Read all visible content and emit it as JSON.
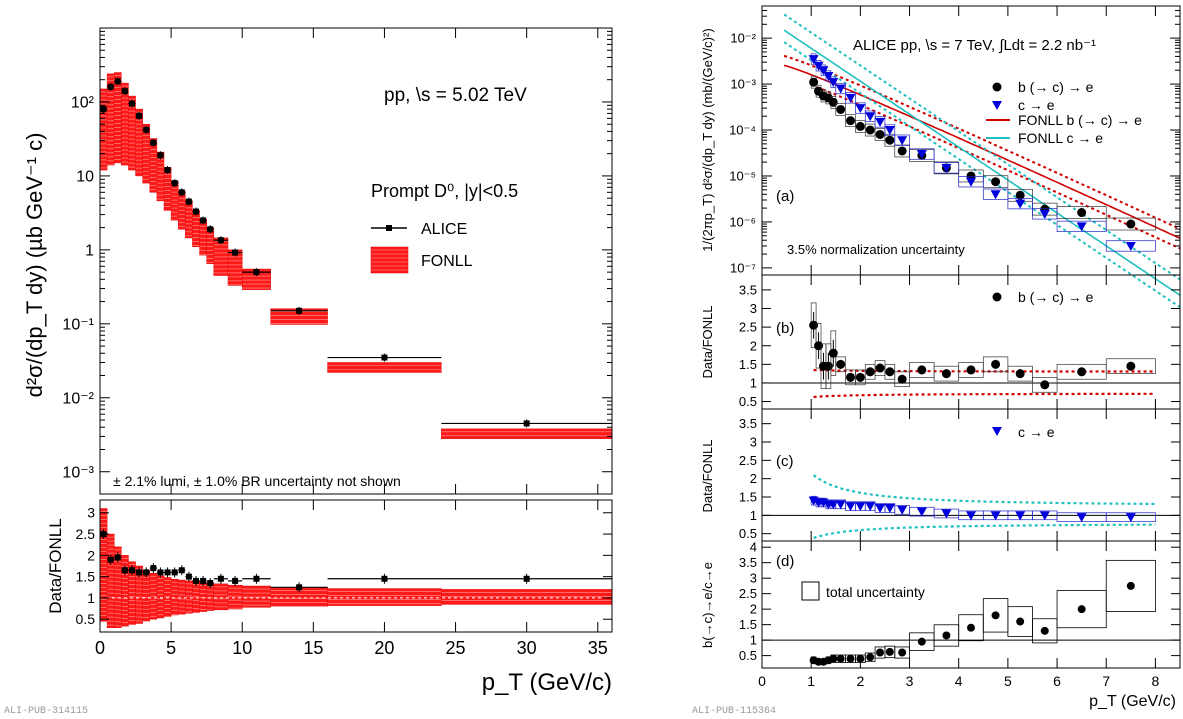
{
  "footers": {
    "left": "ALI-PUB-314115",
    "right": "ALI-PUB-115364"
  },
  "chart_data": [
    {
      "panel": "left-top",
      "type": "scatter",
      "yscale": "log",
      "ylim": [
        0.0005,
        1000
      ],
      "xlim": [
        0,
        36
      ],
      "ylabel": "d²σ/(dp_T dy) (µb GeV⁻¹ c)",
      "ytick_labels": [
        "10⁻³",
        "10⁻²",
        "10⁻¹",
        "1",
        "10",
        "10²"
      ],
      "ytick_values": [
        0.001,
        0.01,
        0.1,
        1,
        10,
        100
      ],
      "annotations": [
        "pp, \\s = 5.02 TeV",
        "Prompt D⁰, |y|<0.5",
        "± 2.1% lumi, ± 1.0% BR uncertainty not shown"
      ],
      "legend": [
        "ALICE",
        "FONLL"
      ],
      "legend_position": "top-right",
      "series": [
        {
          "name": "ALICE",
          "color": "#000000",
          "x": [
            0.25,
            0.75,
            1.25,
            1.75,
            2.25,
            2.75,
            3.25,
            3.75,
            4.25,
            4.75,
            5.25,
            5.75,
            6.25,
            6.75,
            7.25,
            7.75,
            8.5,
            9.5,
            11,
            14,
            20,
            30
          ],
          "xlo": [
            0,
            0.5,
            1,
            1.5,
            2,
            2.5,
            3,
            3.5,
            4,
            4.5,
            5,
            5.5,
            6,
            6.5,
            7,
            7.5,
            8,
            9,
            10,
            12,
            16,
            24
          ],
          "xhi": [
            0.5,
            1,
            1.5,
            2,
            2.5,
            3,
            3.5,
            4,
            4.5,
            5,
            5.5,
            6,
            6.5,
            7,
            7.5,
            8,
            9,
            10,
            12,
            16,
            24,
            36
          ],
          "y": [
            80,
            160,
            190,
            140,
            95,
            65,
            42,
            28,
            19,
            12,
            8,
            6,
            4.5,
            3.3,
            2.5,
            1.9,
            1.35,
            0.92,
            0.5,
            0.15,
            0.035,
            0.0045
          ]
        },
        {
          "name": "FONLL",
          "color": "#ff0000",
          "xlo": [
            0,
            0.5,
            1,
            1.5,
            2,
            2.5,
            3,
            3.5,
            4,
            4.5,
            5,
            5.5,
            6,
            6.5,
            7,
            7.5,
            8,
            9,
            10,
            12,
            16,
            24
          ],
          "xhi": [
            0.5,
            1,
            1.5,
            2,
            2.5,
            3,
            3.5,
            4,
            4.5,
            5,
            5.5,
            6,
            6.5,
            7,
            7.5,
            8,
            9,
            10,
            12,
            16,
            24,
            36
          ],
          "ylo": [
            12,
            14,
            15,
            14,
            12,
            10,
            8,
            6,
            4.6,
            3.4,
            2.5,
            1.9,
            1.45,
            1.1,
            0.85,
            0.65,
            0.45,
            0.33,
            0.29,
            0.098,
            0.022,
            0.0028
          ],
          "yhi": [
            150,
            240,
            250,
            180,
            120,
            80,
            50,
            32,
            21,
            13,
            8.5,
            6.2,
            4.6,
            3.4,
            2.6,
            2.0,
            1.45,
            1.0,
            0.55,
            0.16,
            0.03,
            0.0038
          ]
        }
      ]
    },
    {
      "panel": "left-bottom",
      "type": "scatter",
      "xlim": [
        0,
        36
      ],
      "ylim": [
        0.2,
        3.3
      ],
      "xlabel": "p_T (GeV/c)",
      "ylabel": "Data/FONLL",
      "ytick_labels": [
        "0.5",
        "1",
        "1.5",
        "2",
        "2.5",
        "3"
      ],
      "xtick_labels": [
        "0",
        "5",
        "10",
        "15",
        "20",
        "25",
        "30",
        "35"
      ],
      "series": [
        {
          "name": "ALICE",
          "color": "#000000",
          "x": [
            0.25,
            0.75,
            1.25,
            1.75,
            2.25,
            2.75,
            3.25,
            3.75,
            4.25,
            4.75,
            5.25,
            5.75,
            6.25,
            6.75,
            7.25,
            7.75,
            8.5,
            9.5,
            11,
            14,
            20,
            30
          ],
          "xlo": [
            0,
            0.5,
            1,
            1.5,
            2,
            2.5,
            3,
            3.5,
            4,
            4.5,
            5,
            5.5,
            6,
            6.5,
            7,
            7.5,
            8,
            9,
            10,
            12,
            16,
            24
          ],
          "xhi": [
            0.5,
            1,
            1.5,
            2,
            2.5,
            3,
            3.5,
            4,
            4.5,
            5,
            5.5,
            6,
            6.5,
            7,
            7.5,
            8,
            9,
            10,
            12,
            16,
            24,
            36
          ],
          "y": [
            2.5,
            1.9,
            1.95,
            1.65,
            1.65,
            1.6,
            1.6,
            1.7,
            1.6,
            1.6,
            1.6,
            1.65,
            1.5,
            1.4,
            1.4,
            1.35,
            1.45,
            1.4,
            1.45,
            1.25,
            1.45,
            1.45
          ]
        },
        {
          "name": "FONLL",
          "color": "#ff0000",
          "xlo": [
            0,
            0.5,
            1,
            1.5,
            2,
            2.5,
            3,
            3.5,
            4,
            4.5,
            5,
            5.5,
            6,
            6.5,
            7,
            7.5,
            8,
            9,
            10,
            12,
            16,
            24
          ],
          "xhi": [
            0.5,
            1,
            1.5,
            2,
            2.5,
            3,
            3.5,
            4,
            4.5,
            5,
            5.5,
            6,
            6.5,
            7,
            7.5,
            8,
            9,
            10,
            12,
            16,
            24,
            36
          ],
          "ylo": [
            0.45,
            0.3,
            0.3,
            0.33,
            0.37,
            0.4,
            0.45,
            0.5,
            0.53,
            0.56,
            0.6,
            0.62,
            0.64,
            0.66,
            0.68,
            0.7,
            0.72,
            0.74,
            0.78,
            0.8,
            0.82,
            0.84
          ],
          "yhi": [
            3.1,
            2.5,
            2.2,
            2.0,
            1.85,
            1.75,
            1.65,
            1.58,
            1.52,
            1.48,
            1.44,
            1.42,
            1.4,
            1.38,
            1.36,
            1.35,
            1.33,
            1.3,
            1.28,
            1.25,
            1.22,
            1.2
          ]
        }
      ]
    },
    {
      "panel": "right-a",
      "type": "scatter",
      "yscale": "log",
      "xlim": [
        0,
        8.5
      ],
      "ylim": [
        7e-08,
        0.05
      ],
      "ylabel": "1/(2πp_T) d²σ/(dp_T dy) (mb/(GeV/c)²)",
      "ytick_labels": [
        "10⁻⁷",
        "10⁻⁶",
        "10⁻⁵",
        "10⁻⁴",
        "10⁻³",
        "10⁻²"
      ],
      "ytick_values": [
        1e-07,
        1e-06,
        1e-05,
        0.0001,
        0.001,
        0.01
      ],
      "annotations": [
        "ALICE pp, \\s = 7 TeV, ∫Ldt = 2.2 nb⁻¹",
        "(a)",
        "3.5% normalization uncertainty"
      ],
      "legend": [
        "b (→ c) → e",
        "c → e",
        "FONLL b (→ c) → e",
        "FONLL c → e"
      ],
      "legend_position": "top-right",
      "series": [
        {
          "name": "b (→ c) → e",
          "color": "#000000",
          "x": [
            1.05,
            1.15,
            1.25,
            1.35,
            1.45,
            1.6,
            1.8,
            2.0,
            2.2,
            2.4,
            2.6,
            2.85,
            3.25,
            3.75,
            4.25,
            4.75,
            5.25,
            5.75,
            6.5,
            7.5
          ],
          "y": [
            0.0011,
            0.0007,
            0.00055,
            0.0005,
            0.0004,
            0.00028,
            0.00016,
            0.00012,
            0.0001,
            8e-05,
            6e-05,
            3.5e-05,
            2.8e-05,
            1.5e-05,
            1e-05,
            7.5e-06,
            3.8e-06,
            1.9e-06,
            1.6e-06,
            9e-07
          ]
        },
        {
          "name": "c → e",
          "color": "#0000dd",
          "x": [
            1.05,
            1.15,
            1.25,
            1.35,
            1.45,
            1.6,
            1.8,
            2.0,
            2.2,
            2.4,
            2.6,
            2.85,
            3.25,
            3.75,
            4.25,
            4.75,
            5.25,
            5.75,
            6.5,
            7.5
          ],
          "y": [
            0.0035,
            0.0025,
            0.002,
            0.0015,
            0.0011,
            0.0008,
            0.0005,
            0.0003,
            0.0002,
            0.00015,
            0.0001,
            6e-05,
            3e-05,
            1.5e-05,
            7.5e-06,
            4e-06,
            2.5e-06,
            1.5e-06,
            8e-07,
            3e-07
          ]
        }
      ]
    },
    {
      "panel": "right-b",
      "type": "scatter",
      "xlim": [
        0,
        8.5
      ],
      "ylim": [
        0.3,
        3.9
      ],
      "ylabel": "Data/FONLL",
      "annotations": [
        "(b)"
      ],
      "legend": [
        "b (→ c) → e"
      ],
      "ytick_labels": [
        "0.5",
        "1",
        "1.5",
        "2",
        "2.5",
        "3",
        "3.5"
      ],
      "series": [
        {
          "name": "b (→ c) → e",
          "color": "#000000",
          "x": [
            1.05,
            1.15,
            1.25,
            1.35,
            1.45,
            1.6,
            1.8,
            2.0,
            2.2,
            2.4,
            2.6,
            2.85,
            3.25,
            3.75,
            4.25,
            4.75,
            5.25,
            5.75,
            6.5,
            7.5
          ],
          "y": [
            2.55,
            2.0,
            1.45,
            1.45,
            1.8,
            1.5,
            1.15,
            1.15,
            1.3,
            1.4,
            1.3,
            1.1,
            1.35,
            1.25,
            1.35,
            1.5,
            1.25,
            0.95,
            1.3,
            1.45
          ]
        }
      ]
    },
    {
      "panel": "right-c",
      "type": "scatter",
      "xlim": [
        0,
        8.5
      ],
      "ylim": [
        0.3,
        3.9
      ],
      "ylabel": "Data/FONLL",
      "annotations": [
        "(c)"
      ],
      "legend": [
        "c → e"
      ],
      "ytick_labels": [
        "0.5",
        "1",
        "1.5",
        "2",
        "2.5",
        "3",
        "3.5"
      ],
      "series": [
        {
          "name": "c → e",
          "color": "#0000dd",
          "x": [
            1.05,
            1.15,
            1.25,
            1.35,
            1.45,
            1.6,
            1.8,
            2.0,
            2.2,
            2.4,
            2.6,
            2.85,
            3.25,
            3.75,
            4.25,
            4.75,
            5.25,
            5.75,
            6.5,
            7.5
          ],
          "y": [
            1.4,
            1.35,
            1.35,
            1.3,
            1.3,
            1.3,
            1.25,
            1.25,
            1.25,
            1.2,
            1.2,
            1.15,
            1.1,
            1.05,
            1.0,
            1.0,
            1.0,
            1.0,
            0.95,
            0.95
          ]
        }
      ]
    },
    {
      "panel": "right-d",
      "type": "scatter",
      "xlim": [
        0,
        8.5
      ],
      "ylim": [
        0.1,
        4.2
      ],
      "xlabel": "p_T (GeV/c)",
      "ylabel": "b(→c)→e/c→e",
      "annotations": [
        "(d)"
      ],
      "legend": [
        "total uncertainty"
      ],
      "ytick_labels": [
        "0.5",
        "1",
        "1.5",
        "2",
        "2.5",
        "3",
        "3.5",
        "4"
      ],
      "xtick_labels": [
        "0",
        "1",
        "2",
        "3",
        "4",
        "5",
        "6",
        "7",
        "8"
      ],
      "series": [
        {
          "name": "b(→c)→e/c→e",
          "color": "#000000",
          "x": [
            1.05,
            1.15,
            1.25,
            1.35,
            1.45,
            1.6,
            1.8,
            2.0,
            2.2,
            2.4,
            2.6,
            2.85,
            3.25,
            3.75,
            4.25,
            4.75,
            5.25,
            5.75,
            6.5,
            7.5
          ],
          "y": [
            0.35,
            0.3,
            0.3,
            0.35,
            0.4,
            0.4,
            0.4,
            0.4,
            0.45,
            0.6,
            0.62,
            0.6,
            0.95,
            1.15,
            1.4,
            1.8,
            1.6,
            1.3,
            2.0,
            2.75
          ]
        }
      ]
    }
  ]
}
